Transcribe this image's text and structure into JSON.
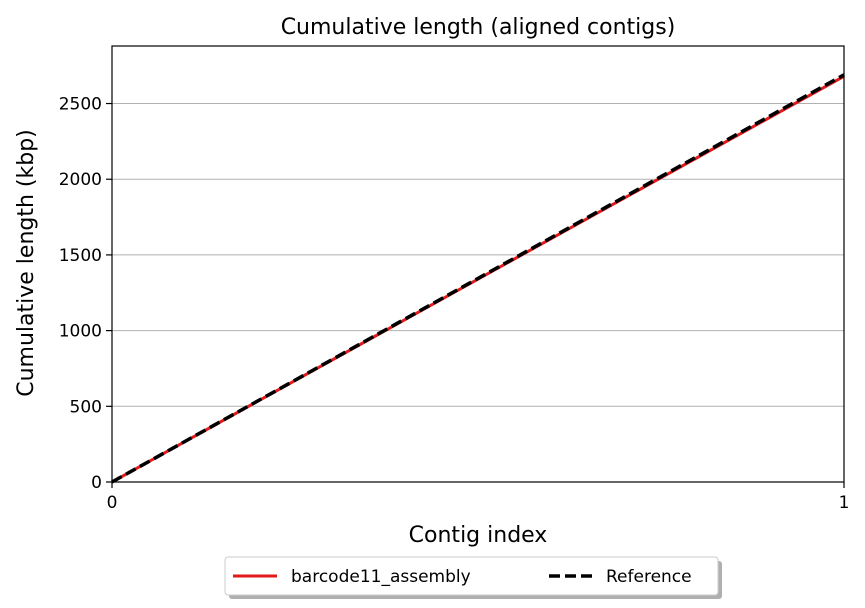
{
  "chart_data": {
    "type": "line",
    "title": "Cumulative length (aligned contigs)",
    "xlabel": "Contig index",
    "ylabel": "Cumulative length (kbp)",
    "xlim": [
      0,
      1
    ],
    "ylim": [
      0,
      2880
    ],
    "xticks": [
      0,
      1
    ],
    "yticks": [
      0,
      500,
      1000,
      1500,
      2000,
      2500
    ],
    "grid": "horizontal",
    "legend_position": "bottom-center",
    "series": [
      {
        "name": "barcode11_assembly",
        "color": "#e31a1c",
        "style": "solid",
        "x": [
          0,
          1
        ],
        "y": [
          0,
          2680
        ]
      },
      {
        "name": "Reference",
        "color": "#000000",
        "style": "dashed",
        "x": [
          0,
          1
        ],
        "y": [
          0,
          2690
        ]
      }
    ]
  }
}
